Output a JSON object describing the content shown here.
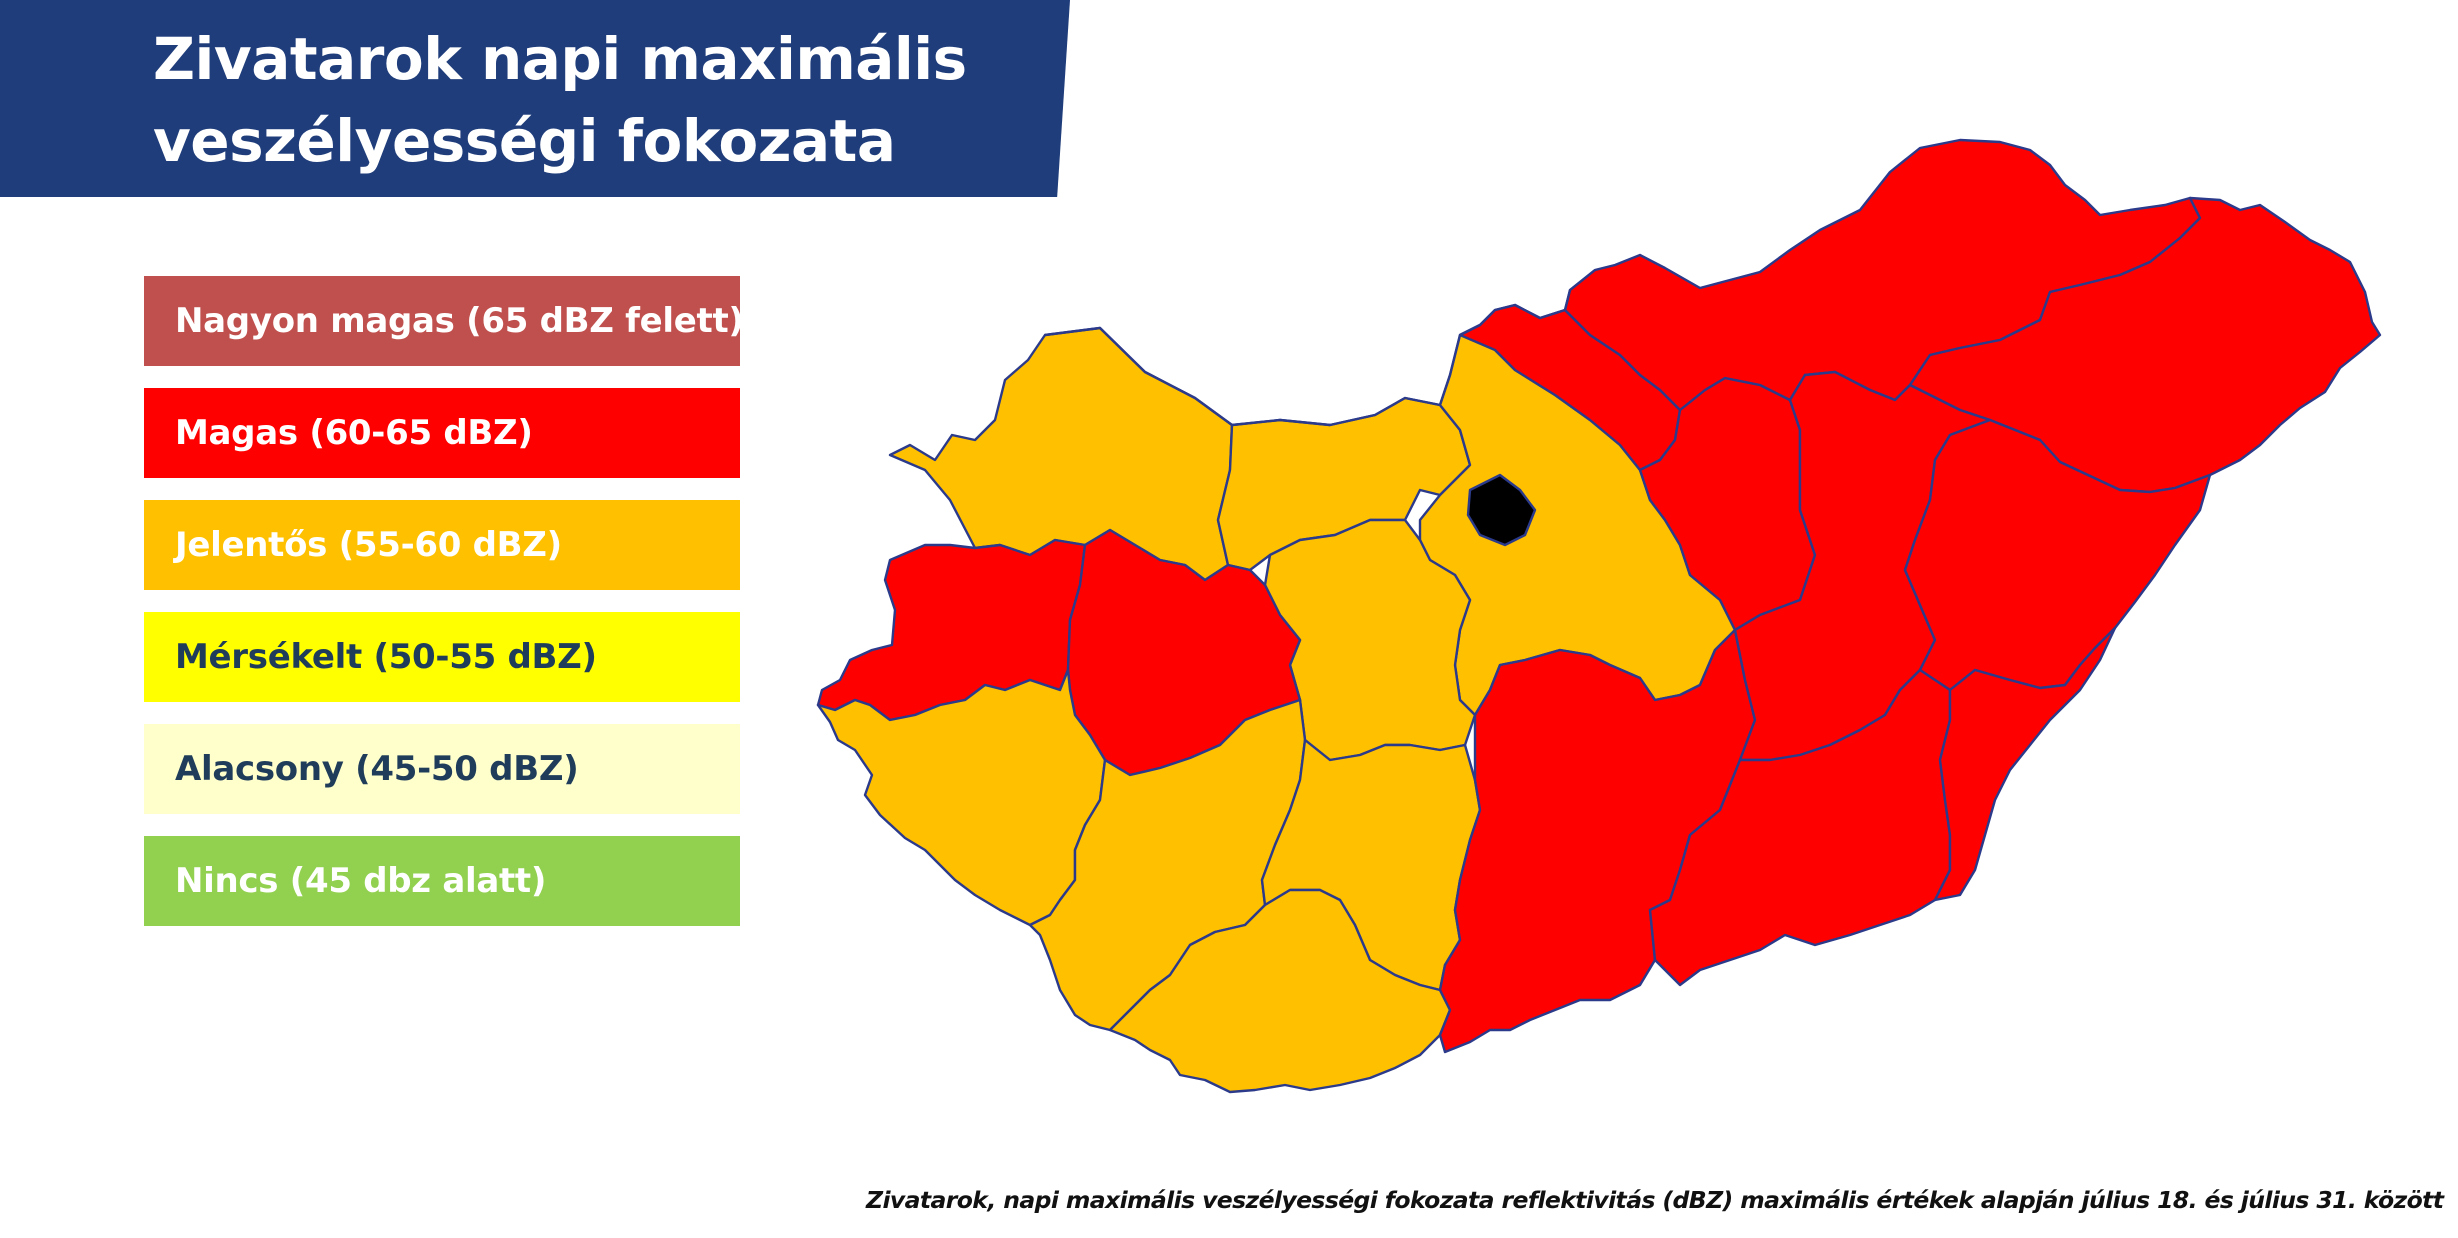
{
  "title": {
    "line1": "Zivatarok napi maximális",
    "line2": "veszélyességi fokozata"
  },
  "legend": [
    {
      "label": "Nagyon magas (65 dBZ felett)",
      "color": "#c0504d",
      "text_color": "#ffffff"
    },
    {
      "label": "Magas (60-65 dBZ)",
      "color": "#ff0000",
      "text_color": "#ffffff"
    },
    {
      "label": "Jelentős (55-60 dBZ)",
      "color": "#ffc000",
      "text_color": "#ffffff"
    },
    {
      "label": "Mérsékelt (50-55 dBZ)",
      "color": "#ffff00",
      "text_color": "#1f3d5a"
    },
    {
      "label": "Alacsony (45-50 dBZ)",
      "color": "#ffffcc",
      "text_color": "#1f3d5a"
    },
    {
      "label": "Nincs (45 dbz alatt)",
      "color": "#92d050",
      "text_color": "#ffffff"
    }
  ],
  "map": {
    "colors": {
      "high": "#ff0000",
      "significant": "#ffc000",
      "border": "#2b3a8a"
    },
    "regions": {
      "gyor_moson_sopron": "significant",
      "komarom_esztergom": "significant",
      "pest": "significant",
      "fejer": "significant",
      "vas": "high",
      "veszprem": "high",
      "zala": "significant",
      "somogy": "significant",
      "tolna": "significant",
      "baranya": "significant",
      "bacs_kiskun": "high",
      "nograd": "high",
      "borsod_abauj_zemplen": "high",
      "heves": "high",
      "szabolcs_szatmar_bereg": "high",
      "jasz_nagykun_szolnok": "high",
      "hajdu_bihar": "high",
      "csongrad_csanad": "high",
      "bekes": "high"
    }
  },
  "caption": "Zivatarok, napi maximális veszélyességi fokozata reflektivitás (dBZ) maximális értékek alapján július 18. és július 31.  között"
}
